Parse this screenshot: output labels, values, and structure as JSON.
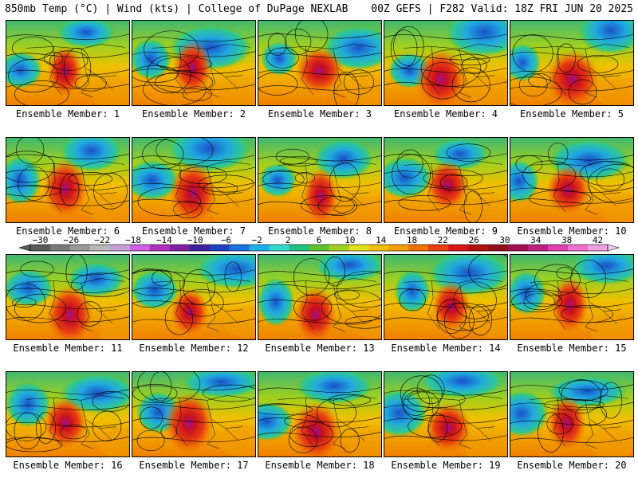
{
  "header": {
    "left": "850mb Temp (°C) | Wind (kts) | College of DuPage NEXLAB",
    "right": "00Z GEFS | F282 Valid: 18Z FRI JUN 20 2025"
  },
  "member_prefix": "Ensemble Member: ",
  "members": [
    1,
    2,
    3,
    4,
    5,
    6,
    7,
    8,
    9,
    10,
    11,
    12,
    13,
    14,
    15,
    16,
    17,
    18,
    19,
    20
  ],
  "colorbar": {
    "tick_labels": [
      "−30",
      "−26",
      "−22",
      "−18",
      "−14",
      "−10",
      "−6",
      "−2",
      "2",
      "6",
      "10",
      "14",
      "18",
      "22",
      "26",
      "30",
      "34",
      "38",
      "42"
    ],
    "colors": [
      "#5a5a5a",
      "#7a7a7a",
      "#9a9a9a",
      "#b8b8b8",
      "#c8a0d8",
      "#d060e0",
      "#b030c0",
      "#8020a0",
      "#4020a0",
      "#2040c0",
      "#1a70e0",
      "#20b0e8",
      "#30d8d0",
      "#20c080",
      "#60c030",
      "#a0d020",
      "#e0e020",
      "#f0c000",
      "#f0a000",
      "#f07000",
      "#e84010",
      "#d81818",
      "#b01010",
      "#901018",
      "#a01050",
      "#c02080",
      "#e040b0",
      "#f070d0",
      "#f0a0e0"
    ]
  },
  "legend": {
    "position": "middle, between rows 2 and 3"
  }
}
